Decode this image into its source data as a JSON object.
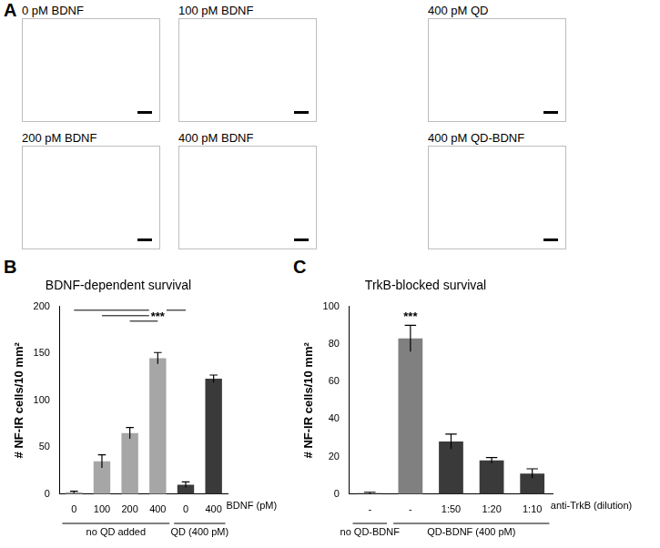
{
  "panel_a": {
    "label": "A",
    "images": [
      "0 pM BDNF",
      "100 pM BDNF",
      "400 pM QD",
      "200 pM BDNF",
      "400 pM BDNF",
      "400 pM QD-BDNF"
    ]
  },
  "chart_data": [
    {
      "panel_label": "B",
      "type": "bar",
      "title": "BDNF-dependent survival",
      "y_label": "# NF-IR cells/10 mm²",
      "x_label": "BDNF (pM)",
      "categories": [
        "0",
        "100",
        "200",
        "400",
        "0",
        "400"
      ],
      "values": [
        2,
        35,
        65,
        145,
        10,
        123
      ],
      "errors": [
        1,
        7,
        6,
        6,
        3,
        4
      ],
      "colors": [
        "#a6a6a6",
        "#a6a6a6",
        "#a6a6a6",
        "#a6a6a6",
        "#3a3a3a",
        "#3a3a3a"
      ],
      "groups": [
        {
          "label": "no QD added",
          "count": 4
        },
        {
          "label": "QD (400 pM)",
          "count": 2
        }
      ],
      "significance": {
        "label": "***",
        "bar": 3,
        "brackets": [
          [
            0,
            4
          ],
          [
            1,
            3
          ],
          [
            2,
            3
          ]
        ]
      },
      "ylim": [
        0,
        200
      ],
      "yticks": [
        0,
        50,
        100,
        150,
        200
      ],
      "grid": false
    },
    {
      "panel_label": "C",
      "type": "bar",
      "title": "TrkB-blocked survival",
      "y_label": "# NF-IR cells/10 mm²",
      "x_label": "anti-TrkB (dilution)",
      "categories": [
        "-",
        "-",
        "1:50",
        "1:20",
        "1:10"
      ],
      "values": [
        0.5,
        83,
        28,
        18,
        11
      ],
      "errors": [
        0.5,
        7,
        4,
        1.5,
        2.5
      ],
      "colors": [
        "#3a3a3a",
        "#808080",
        "#3a3a3a",
        "#3a3a3a",
        "#3a3a3a"
      ],
      "groups": [
        {
          "label": "no QD-BDNF",
          "count": 1
        },
        {
          "label": "QD-BDNF (400 pM)",
          "count": 4
        }
      ],
      "significance": {
        "label": "***",
        "bar": 1
      },
      "ylim": [
        0,
        100
      ],
      "yticks": [
        0,
        20,
        40,
        60,
        80,
        100
      ],
      "grid": false
    }
  ]
}
